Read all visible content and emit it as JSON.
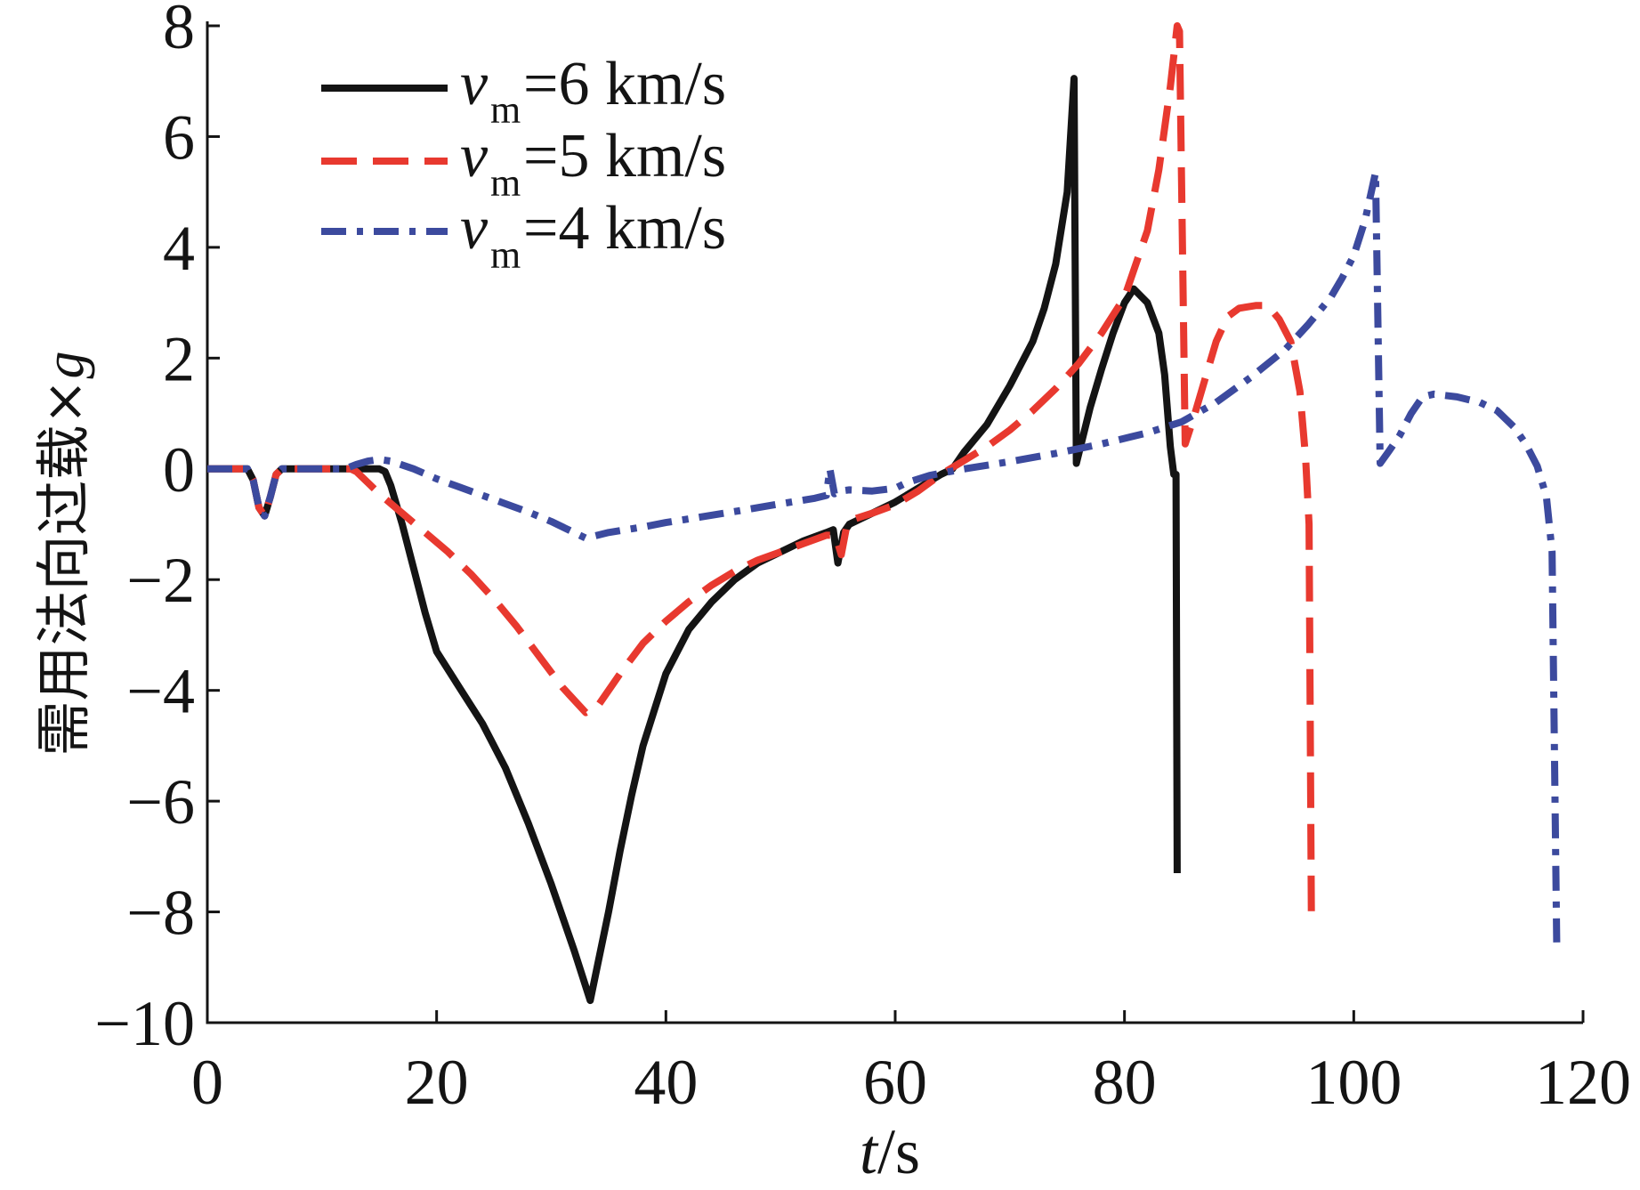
{
  "chart_data": {
    "type": "line",
    "title": "",
    "xlabel": {
      "var": "t",
      "unit": "/s"
    },
    "ylabel": {
      "text": "需用法向过载×",
      "var": "g"
    },
    "xlim": [
      0,
      120
    ],
    "ylim": [
      -10,
      8
    ],
    "xticks": [
      0,
      20,
      40,
      60,
      80,
      100,
      120
    ],
    "xticklabels": [
      "0",
      "20",
      "40",
      "60",
      "80",
      "100",
      "120"
    ],
    "yticks": [
      8,
      6,
      4,
      2,
      0,
      -2,
      -4,
      -6,
      -8,
      -10
    ],
    "yticklabels": [
      "8",
      "6",
      "4",
      "2",
      "0",
      "−2",
      "−4",
      "−6",
      "−8",
      "−10"
    ],
    "grid": false,
    "legend_position": "top-left",
    "series": [
      {
        "label": {
          "var": "v",
          "sub": "m",
          "value": "=6 km/s"
        },
        "color": "#141414",
        "style": "solid",
        "x": [
          0,
          3.5,
          4,
          4.5,
          5,
          5.5,
          6,
          6.5,
          15,
          15.5,
          16,
          17,
          18,
          19,
          20,
          22,
          24,
          26,
          28,
          30,
          32,
          33.4,
          34,
          35,
          36,
          37,
          38,
          40,
          42,
          44,
          46,
          48,
          50,
          52,
          54,
          54.6,
          55,
          55.5,
          56,
          58,
          60,
          62,
          64,
          65,
          66,
          68,
          70,
          72,
          73,
          74,
          75,
          75.6,
          75.8,
          77,
          78,
          79,
          80,
          80.8,
          82,
          83,
          83.5,
          84,
          84.3,
          84.5,
          84.6
        ],
        "y": [
          0,
          0,
          -0.2,
          -0.7,
          -0.85,
          -0.5,
          -0.1,
          0,
          0,
          -0.05,
          -0.3,
          -1.0,
          -1.8,
          -2.6,
          -3.3,
          -3.95,
          -4.6,
          -5.4,
          -6.4,
          -7.5,
          -8.7,
          -9.6,
          -9.0,
          -8.0,
          -6.9,
          -5.9,
          -5.0,
          -3.7,
          -2.9,
          -2.4,
          -2.0,
          -1.7,
          -1.5,
          -1.3,
          -1.15,
          -1.1,
          -1.7,
          -1.15,
          -1.0,
          -0.8,
          -0.6,
          -0.35,
          -0.1,
          0,
          0.3,
          0.8,
          1.5,
          2.3,
          2.9,
          3.7,
          5.0,
          7.05,
          0.1,
          1.1,
          1.8,
          2.45,
          3.0,
          3.25,
          3.0,
          2.45,
          1.7,
          0.4,
          -0.1,
          -0.1,
          -7.3
        ]
      },
      {
        "label": {
          "var": "v",
          "sub": "m",
          "value": "=5 km/s"
        },
        "color": "#e8392f",
        "style": "dashed",
        "x": [
          0,
          3.5,
          4,
          4.5,
          5,
          5.5,
          6,
          6.5,
          12.5,
          13,
          14,
          15,
          17,
          19,
          21,
          23,
          25,
          27,
          29,
          31,
          33,
          34,
          35,
          36,
          38,
          40,
          42,
          44,
          46,
          48,
          50,
          52,
          54,
          54.8,
          55.3,
          55.8,
          56.5,
          58,
          60,
          62,
          64,
          66,
          68,
          70,
          72,
          74,
          76,
          78,
          80,
          82,
          83,
          84,
          84.6,
          84.8,
          85.3,
          86,
          87,
          88,
          89,
          90,
          91.5,
          92.5,
          93.5,
          94.5,
          95.3,
          95.8,
          96.1,
          96.3
        ],
        "y": [
          0,
          0,
          -0.2,
          -0.7,
          -0.85,
          -0.5,
          -0.1,
          0,
          0,
          -0.05,
          -0.25,
          -0.45,
          -0.8,
          -1.15,
          -1.5,
          -1.9,
          -2.35,
          -2.85,
          -3.4,
          -3.95,
          -4.4,
          -4.3,
          -4.0,
          -3.7,
          -3.15,
          -2.75,
          -2.4,
          -2.1,
          -1.85,
          -1.65,
          -1.5,
          -1.35,
          -1.2,
          -1.2,
          -1.55,
          -1.0,
          -0.9,
          -0.8,
          -0.65,
          -0.4,
          -0.1,
          0.15,
          0.4,
          0.7,
          1.05,
          1.45,
          1.9,
          2.45,
          3.1,
          4.3,
          5.4,
          6.9,
          8.0,
          7.9,
          0.45,
          0.9,
          1.6,
          2.3,
          2.75,
          2.9,
          2.95,
          2.95,
          2.7,
          2.3,
          1.4,
          0.2,
          -1.0,
          -8.05
        ]
      },
      {
        "label": {
          "var": "v",
          "sub": "m",
          "value": "=4 km/s"
        },
        "color": "#3c4a9e",
        "style": "dashdot",
        "x": [
          0,
          3.5,
          4,
          4.5,
          5,
          5.5,
          6,
          6.5,
          12,
          13,
          14,
          15,
          16,
          18,
          20,
          22,
          24,
          26,
          28,
          30,
          33,
          35,
          38,
          40,
          43,
          46,
          50,
          53,
          54,
          54.3,
          54.7,
          55.2,
          56,
          58,
          60,
          61,
          63,
          66,
          70,
          74,
          78,
          82,
          85,
          88,
          91,
          94,
          96,
          98,
          99,
          100,
          101,
          101.9,
          102.3,
          103,
          104,
          105,
          106,
          107,
          109,
          111,
          112.5,
          114,
          115,
          116,
          116.8,
          117.3,
          117.7
        ],
        "y": [
          0,
          0,
          -0.2,
          -0.7,
          -0.85,
          -0.5,
          -0.1,
          0,
          0,
          0.08,
          0.14,
          0.17,
          0.14,
          0.0,
          -0.18,
          -0.33,
          -0.48,
          -0.63,
          -0.78,
          -0.95,
          -1.25,
          -1.15,
          -1.05,
          -0.97,
          -0.87,
          -0.77,
          -0.63,
          -0.53,
          -0.48,
          0.0,
          -0.45,
          -0.4,
          -0.38,
          -0.4,
          -0.35,
          -0.25,
          -0.12,
          0.0,
          0.13,
          0.28,
          0.45,
          0.65,
          0.85,
          1.2,
          1.65,
          2.15,
          2.6,
          3.1,
          3.45,
          3.85,
          4.5,
          5.35,
          0.1,
          0.3,
          0.6,
          1.0,
          1.3,
          1.35,
          1.3,
          1.2,
          1.05,
          0.75,
          0.45,
          0.05,
          -0.5,
          -1.5,
          -8.55
        ]
      }
    ]
  }
}
